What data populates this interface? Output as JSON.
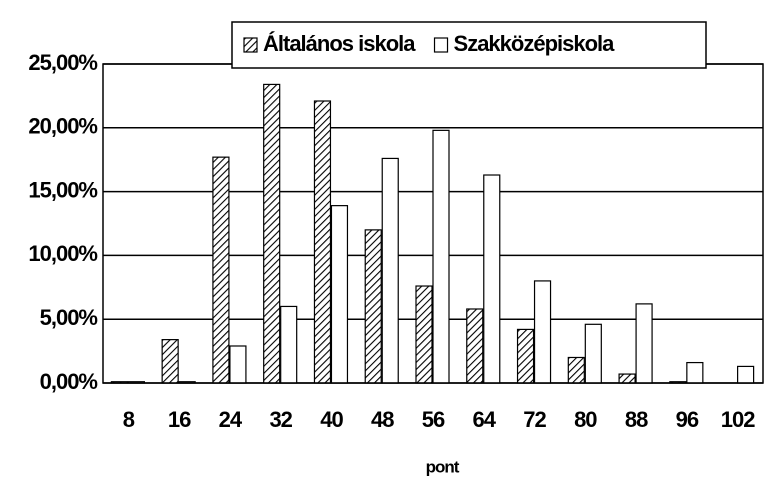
{
  "chart_data": {
    "type": "bar",
    "x_label": "pont",
    "categories": [
      "8",
      "16",
      "24",
      "32",
      "40",
      "48",
      "56",
      "64",
      "72",
      "80",
      "88",
      "96",
      "102"
    ],
    "series": [
      {
        "name": "Általános iskola",
        "color": "#000000",
        "hatch": true,
        "values": [
          0.1,
          3.4,
          17.7,
          23.4,
          22.1,
          12.0,
          7.6,
          5.8,
          4.2,
          2.0,
          0.7,
          0.1,
          0
        ]
      },
      {
        "name": "Szakközépiskola",
        "color": "#ffffff",
        "hatch": false,
        "values": [
          0.1,
          0.1,
          2.9,
          6.0,
          13.9,
          17.6,
          19.8,
          16.3,
          8.0,
          4.6,
          6.2,
          1.6,
          1.3
        ]
      }
    ],
    "ylim": [
      0,
      25
    ],
    "yticks": [
      {
        "value": 0,
        "label": "0,00%"
      },
      {
        "value": 5,
        "label": "5,00%"
      },
      {
        "value": 10,
        "label": "10,00%"
      },
      {
        "value": 15,
        "label": "15,00%"
      },
      {
        "value": 20,
        "label": "20,00%"
      },
      {
        "value": 25,
        "label": "25,00%"
      }
    ],
    "grid": true,
    "legend": "top"
  }
}
